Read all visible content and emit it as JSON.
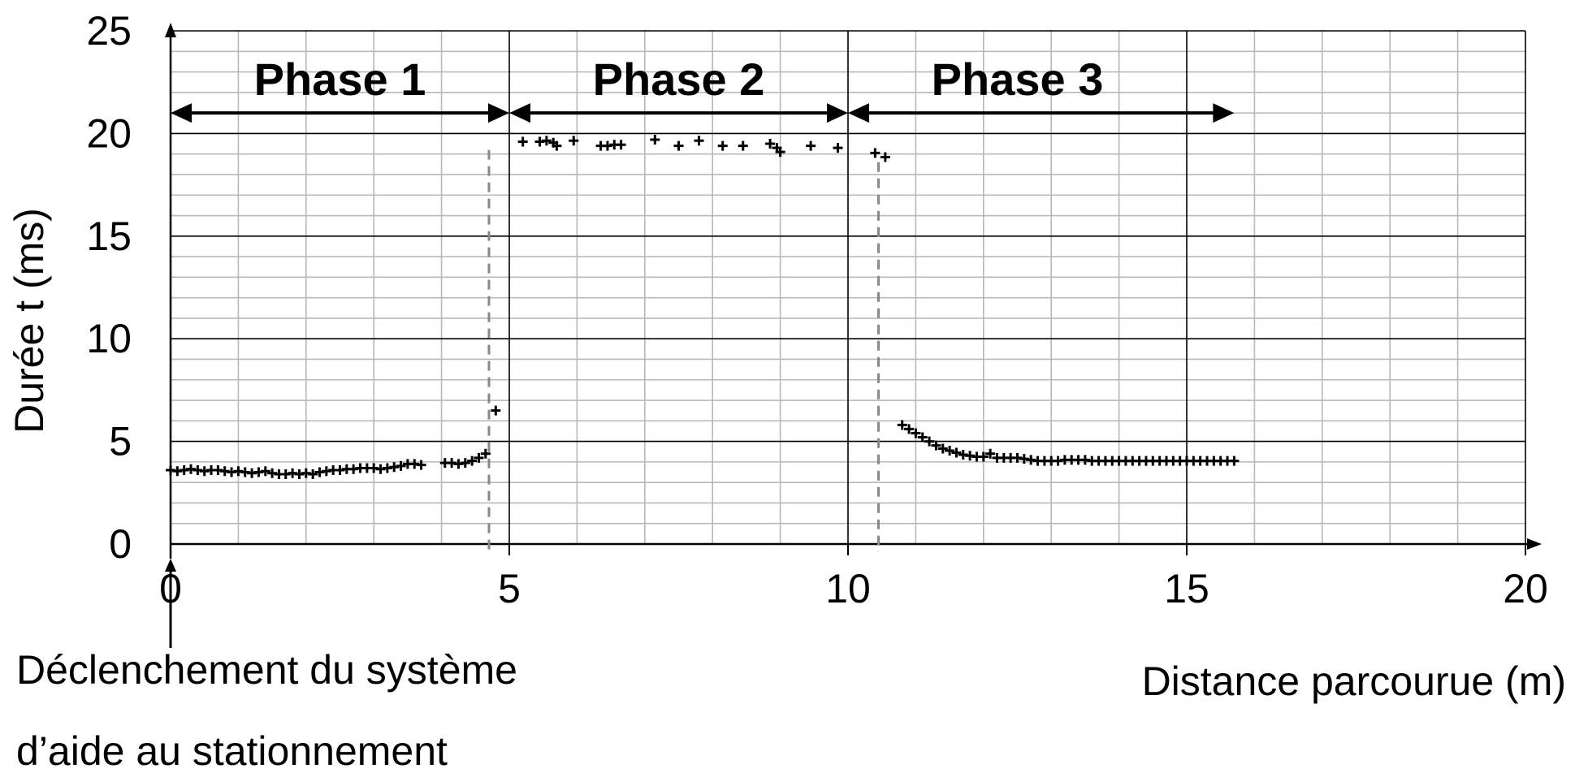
{
  "chart_data": {
    "type": "scatter",
    "title": "",
    "xlabel": "Distance parcourue (m)",
    "ylabel": "Durée t  (ms)",
    "xlim": [
      0,
      20
    ],
    "ylim": [
      0,
      25
    ],
    "x_ticks": [
      "0",
      "5",
      "10",
      "15",
      "20"
    ],
    "y_ticks": [
      "0",
      "5",
      "10",
      "15",
      "20",
      "25"
    ],
    "grid": true,
    "phases": [
      {
        "label": "Phase 1",
        "x_start": 0,
        "x_end": 5
      },
      {
        "label": "Phase 2",
        "x_start": 5,
        "x_end": 10
      },
      {
        "label": "Phase 3",
        "x_start": 10,
        "x_end": 15.7
      }
    ],
    "phase_arrow_y": 21,
    "dashed_markers": [
      {
        "x": 4.7,
        "y_top": 19.2
      },
      {
        "x": 10.45,
        "y_top": 18.6
      }
    ],
    "trigger_annotation": {
      "x": 0,
      "lines": [
        "Déclenchement du système",
        "d’aide au stationnement"
      ]
    },
    "points": [
      [
        0.0,
        3.6
      ],
      [
        0.1,
        3.55
      ],
      [
        0.2,
        3.6
      ],
      [
        0.3,
        3.65
      ],
      [
        0.4,
        3.6
      ],
      [
        0.5,
        3.55
      ],
      [
        0.6,
        3.6
      ],
      [
        0.7,
        3.6
      ],
      [
        0.8,
        3.55
      ],
      [
        0.9,
        3.5
      ],
      [
        1.0,
        3.55
      ],
      [
        1.1,
        3.5
      ],
      [
        1.2,
        3.45
      ],
      [
        1.3,
        3.5
      ],
      [
        1.4,
        3.55
      ],
      [
        1.5,
        3.45
      ],
      [
        1.6,
        3.4
      ],
      [
        1.7,
        3.4
      ],
      [
        1.8,
        3.45
      ],
      [
        1.9,
        3.4
      ],
      [
        2.0,
        3.45
      ],
      [
        2.1,
        3.4
      ],
      [
        2.2,
        3.5
      ],
      [
        2.3,
        3.55
      ],
      [
        2.4,
        3.6
      ],
      [
        2.5,
        3.6
      ],
      [
        2.6,
        3.65
      ],
      [
        2.7,
        3.65
      ],
      [
        2.8,
        3.7
      ],
      [
        2.9,
        3.7
      ],
      [
        3.0,
        3.7
      ],
      [
        3.1,
        3.65
      ],
      [
        3.2,
        3.7
      ],
      [
        3.3,
        3.75
      ],
      [
        3.4,
        3.8
      ],
      [
        3.5,
        3.9
      ],
      [
        3.6,
        3.9
      ],
      [
        3.7,
        3.85
      ],
      [
        4.05,
        3.95
      ],
      [
        4.15,
        3.95
      ],
      [
        4.25,
        3.9
      ],
      [
        4.35,
        3.95
      ],
      [
        4.45,
        4.05
      ],
      [
        4.55,
        4.2
      ],
      [
        4.65,
        4.4
      ],
      [
        4.8,
        6.5
      ],
      [
        5.2,
        19.6
      ],
      [
        5.45,
        19.6
      ],
      [
        5.55,
        19.65
      ],
      [
        5.65,
        19.55
      ],
      [
        5.7,
        19.4
      ],
      [
        5.95,
        19.65
      ],
      [
        6.35,
        19.4
      ],
      [
        6.45,
        19.4
      ],
      [
        6.55,
        19.45
      ],
      [
        6.65,
        19.45
      ],
      [
        7.15,
        19.7
      ],
      [
        7.5,
        19.4
      ],
      [
        7.8,
        19.65
      ],
      [
        8.15,
        19.4
      ],
      [
        8.45,
        19.4
      ],
      [
        8.85,
        19.5
      ],
      [
        8.95,
        19.3
      ],
      [
        9.0,
        19.1
      ],
      [
        9.45,
        19.4
      ],
      [
        9.85,
        19.3
      ],
      [
        10.4,
        19.05
      ],
      [
        10.55,
        18.85
      ],
      [
        10.8,
        5.8
      ],
      [
        10.9,
        5.6
      ],
      [
        11.0,
        5.4
      ],
      [
        11.1,
        5.2
      ],
      [
        11.2,
        5.0
      ],
      [
        11.3,
        4.8
      ],
      [
        11.4,
        4.65
      ],
      [
        11.5,
        4.55
      ],
      [
        11.6,
        4.45
      ],
      [
        11.7,
        4.35
      ],
      [
        11.8,
        4.3
      ],
      [
        11.9,
        4.25
      ],
      [
        12.0,
        4.25
      ],
      [
        12.1,
        4.4
      ],
      [
        12.2,
        4.2
      ],
      [
        12.3,
        4.2
      ],
      [
        12.4,
        4.2
      ],
      [
        12.5,
        4.2
      ],
      [
        12.6,
        4.15
      ],
      [
        12.7,
        4.1
      ],
      [
        12.8,
        4.05
      ],
      [
        12.9,
        4.05
      ],
      [
        13.0,
        4.05
      ],
      [
        13.1,
        4.05
      ],
      [
        13.2,
        4.1
      ],
      [
        13.3,
        4.1
      ],
      [
        13.4,
        4.1
      ],
      [
        13.5,
        4.1
      ],
      [
        13.6,
        4.05
      ],
      [
        13.7,
        4.05
      ],
      [
        13.8,
        4.05
      ],
      [
        13.9,
        4.05
      ],
      [
        14.0,
        4.05
      ],
      [
        14.1,
        4.05
      ],
      [
        14.2,
        4.05
      ],
      [
        14.3,
        4.05
      ],
      [
        14.4,
        4.05
      ],
      [
        14.5,
        4.05
      ],
      [
        14.6,
        4.05
      ],
      [
        14.7,
        4.05
      ],
      [
        14.8,
        4.05
      ],
      [
        14.9,
        4.05
      ],
      [
        15.0,
        4.05
      ],
      [
        15.1,
        4.05
      ],
      [
        15.2,
        4.05
      ],
      [
        15.3,
        4.05
      ],
      [
        15.4,
        4.05
      ],
      [
        15.5,
        4.05
      ],
      [
        15.6,
        4.05
      ],
      [
        15.7,
        4.05
      ]
    ]
  }
}
